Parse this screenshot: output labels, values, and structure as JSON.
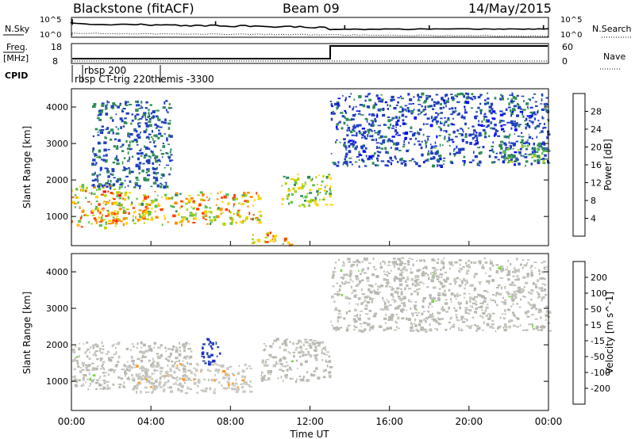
{
  "header": {
    "station": "Blackstone (fitACF)",
    "beam": "Beam 09",
    "date": "14/May/2015"
  },
  "panels": {
    "nsky_label": "N.Sky",
    "nsearch_label": "N.Search",
    "freq_label": "Freq.",
    "freq_unit": "[MHz]",
    "nave_label": "Nave",
    "cpid_label": "CPID",
    "nsky_ticks": [
      "10^5",
      "10^0"
    ],
    "nsearch_ticks": [
      "10^5",
      "10^0"
    ],
    "freq_ticks": [
      "18",
      "8"
    ],
    "nave_ticks": [
      "60",
      "0"
    ],
    "cpid_entries": [
      "rbsp 200",
      "rbsp CT-trig 220",
      "themis -3300"
    ]
  },
  "colors": {
    "power_scale": [
      "#0000ff",
      "#1f3fbf",
      "#2e8b57",
      "#5fbf4f",
      "#b8d400",
      "#ffd000",
      "#ff8c00",
      "#ff4000",
      "#ff0000"
    ],
    "velocity_scale": [
      "#ff0000",
      "#ff6a00",
      "#ff9a20",
      "#c8c8c0",
      "#c8c8c0",
      "#7cd64a",
      "#2f9a4a",
      "#2a4db0",
      "#2030c0"
    ],
    "ground_scatter": "#b8b8b0"
  },
  "chart_data": [
    {
      "type": "heatmap",
      "title": "",
      "ylabel": "Slant Range [km]",
      "xlabel": "",
      "x_ticks": [
        "00:00",
        "04:00",
        "08:00",
        "12:00",
        "16:00",
        "20:00",
        "00:00"
      ],
      "y_ticks": [
        "1000",
        "2000",
        "3000",
        "4000"
      ],
      "ylim": [
        200,
        4500
      ],
      "xlim_hours": [
        0,
        24
      ],
      "colorbar": {
        "label": "Power [dB]",
        "ticks": [
          "4",
          "8",
          "12",
          "16",
          "20",
          "24",
          "28"
        ],
        "range": [
          0,
          30
        ]
      },
      "features": [
        {
          "start_hour": 0.0,
          "end_hour": 2.5,
          "range_km": [
            700,
            1900
          ],
          "peak_db": 28
        },
        {
          "start_hour": 2.0,
          "end_hour": 9.5,
          "range_km": [
            800,
            1700
          ],
          "peak_db": 26
        },
        {
          "start_hour": 1.0,
          "end_hour": 5.0,
          "range_km": [
            1800,
            4200
          ],
          "peak_db": 10
        },
        {
          "start_hour": 9.0,
          "end_hour": 11.0,
          "range_km": [
            250,
            600
          ],
          "peak_db": 28
        },
        {
          "start_hour": 10.5,
          "end_hour": 13.0,
          "range_km": [
            1300,
            2200
          ],
          "peak_db": 20
        },
        {
          "start_hour": 13.0,
          "end_hour": 24.0,
          "range_km": [
            2400,
            4400
          ],
          "peak_db": 8
        },
        {
          "start_hour": 21.5,
          "end_hour": 24.0,
          "range_km": [
            2500,
            3000
          ],
          "peak_db": 16
        }
      ]
    },
    {
      "type": "heatmap",
      "title": "",
      "ylabel": "Slant Range [km]",
      "xlabel": "Time UT",
      "x_ticks": [
        "00:00",
        "04:00",
        "08:00",
        "12:00",
        "16:00",
        "20:00",
        "00:00"
      ],
      "y_ticks": [
        "1000",
        "2000",
        "3000",
        "4000"
      ],
      "ylim": [
        200,
        4500
      ],
      "xlim_hours": [
        0,
        24
      ],
      "colorbar": {
        "label": "Velocity [m s^-1]",
        "ticks": [
          "200",
          "100",
          "50",
          "15",
          "-15",
          "-50",
          "-100",
          "-200"
        ],
        "range": [
          -250,
          250
        ]
      },
      "features": [
        {
          "start_hour": 0.0,
          "end_hour": 6.0,
          "range_km": [
            800,
            2100
          ],
          "velocity_ms": 0
        },
        {
          "start_hour": 3.0,
          "end_hour": 9.0,
          "range_km": [
            700,
            1500
          ],
          "velocity_ms": -60
        },
        {
          "start_hour": 6.5,
          "end_hour": 7.5,
          "range_km": [
            1500,
            2200
          ],
          "velocity_ms": 200
        },
        {
          "start_hour": 9.5,
          "end_hour": 13.0,
          "range_km": [
            1000,
            2200
          ],
          "velocity_ms": 0
        },
        {
          "start_hour": 13.0,
          "end_hour": 24.0,
          "range_km": [
            2400,
            4400
          ],
          "velocity_ms": 0
        }
      ]
    }
  ]
}
